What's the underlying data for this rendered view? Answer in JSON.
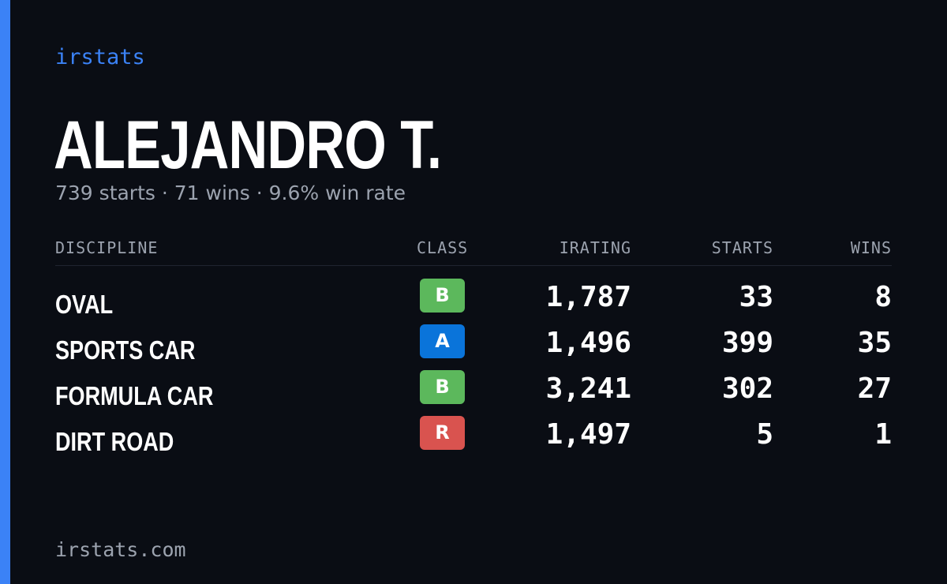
{
  "brand": "irstats",
  "driver": {
    "name": "ALEJANDRO T.",
    "summary": "739 starts · 71 wins · 9.6% win rate"
  },
  "table": {
    "headers": {
      "discipline": "DISCIPLINE",
      "class": "CLASS",
      "irating": "IRATING",
      "starts": "STARTS",
      "wins": "WINS"
    },
    "rows": [
      {
        "discipline": "OVAL",
        "class": "B",
        "class_color": "#5cb85c",
        "irating": "1,787",
        "starts": "33",
        "wins": "8"
      },
      {
        "discipline": "SPORTS CAR",
        "class": "A",
        "class_color": "#0a74da",
        "irating": "1,496",
        "starts": "399",
        "wins": "35"
      },
      {
        "discipline": "FORMULA CAR",
        "class": "B",
        "class_color": "#5cb85c",
        "irating": "3,241",
        "starts": "302",
        "wins": "27"
      },
      {
        "discipline": "DIRT ROAD",
        "class": "R",
        "class_color": "#d9534f",
        "irating": "1,497",
        "starts": "5",
        "wins": "1"
      }
    ]
  },
  "footer": "irstats.com",
  "colors": {
    "background": "#0a0d14",
    "accent": "#3b82f6",
    "muted_text": "#9ca3af"
  }
}
